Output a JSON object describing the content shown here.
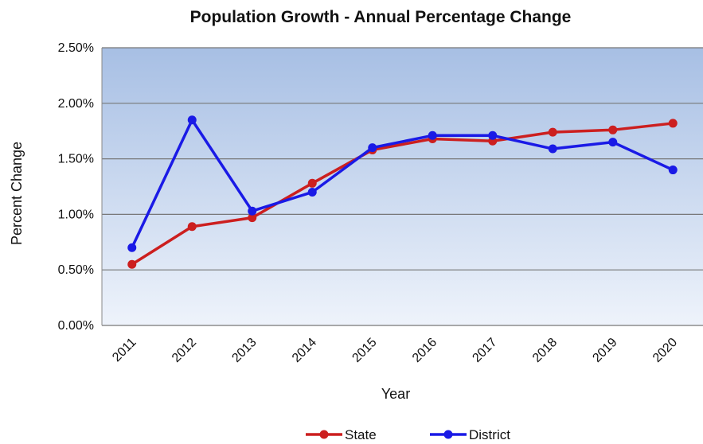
{
  "chart_data": {
    "type": "line",
    "title": "Population Growth - Annual Percentage Change",
    "xlabel": "Year",
    "ylabel": "Percent Change",
    "categories": [
      "2011",
      "2012",
      "2013",
      "2014",
      "2015",
      "2016",
      "2017",
      "2018",
      "2019",
      "2020"
    ],
    "ylim": [
      0,
      0.025
    ],
    "yticks": [
      "0.00%",
      "0.50%",
      "1.00%",
      "1.50%",
      "2.00%",
      "2.50%"
    ],
    "grid": true,
    "legend": "bottom",
    "series": [
      {
        "name": "State",
        "color": "#cc1f1f",
        "values": [
          0.0055,
          0.0089,
          0.0097,
          0.0128,
          0.0158,
          0.0168,
          0.0166,
          0.0174,
          0.0176,
          0.0182
        ]
      },
      {
        "name": "District",
        "color": "#1a1ae6",
        "values": [
          0.007,
          0.0185,
          0.0103,
          0.012,
          0.016,
          0.0171,
          0.0171,
          0.0159,
          0.0165,
          0.014
        ]
      }
    ]
  }
}
